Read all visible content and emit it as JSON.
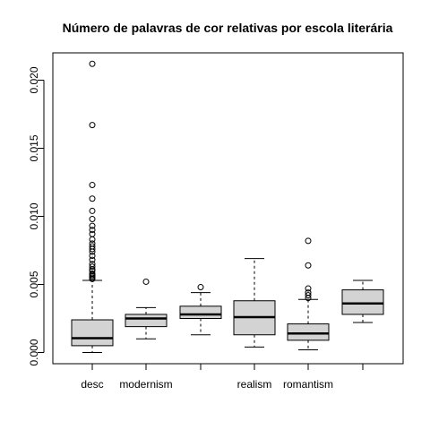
{
  "chart_data": {
    "type": "boxplot",
    "title": "Número de palavras de cor relativas por escola literária",
    "xlabel": "",
    "ylabel": "",
    "ylim": [
      0,
      0.0215
    ],
    "yticks": [
      0.0,
      0.005,
      0.01,
      0.015,
      0.02
    ],
    "ytick_labels": [
      "0.000",
      "0.005",
      "0.010",
      "0.015",
      "0.020"
    ],
    "categories": [
      "desc",
      "modernism",
      "",
      "realism",
      "romantism",
      ""
    ],
    "box_fill": "#d3d3d3",
    "grid": false,
    "legend": "none",
    "boxes": [
      {
        "category": "desc",
        "whisker_low": 0.0,
        "q1": 0.0005,
        "median": 0.00105,
        "q3": 0.0024,
        "whisker_high": 0.0053,
        "outliers": [
          0.0212,
          0.0167,
          0.0123,
          0.0113,
          0.0104,
          0.0098,
          0.0093,
          0.009,
          0.0087,
          0.0083,
          0.008,
          0.0078,
          0.0076,
          0.0074,
          0.0071,
          0.0068,
          0.0065,
          0.0063,
          0.0061,
          0.006,
          0.0058,
          0.0057,
          0.0056,
          0.0055,
          0.0054
        ]
      },
      {
        "category": "modernism",
        "whisker_low": 0.001,
        "q1": 0.0019,
        "median": 0.0025,
        "q3": 0.0028,
        "whisker_high": 0.0033,
        "outliers": [
          0.0052
        ]
      },
      {
        "category": "",
        "whisker_low": 0.0013,
        "q1": 0.0025,
        "median": 0.0028,
        "q3": 0.0034,
        "whisker_high": 0.0044,
        "outliers": [
          0.0048
        ]
      },
      {
        "category": "realism",
        "whisker_low": 0.0004,
        "q1": 0.0013,
        "median": 0.0026,
        "q3": 0.0038,
        "whisker_high": 0.0069,
        "outliers": []
      },
      {
        "category": "romantism",
        "whisker_low": 0.0002,
        "q1": 0.0009,
        "median": 0.0014,
        "q3": 0.0021,
        "whisker_high": 0.0039,
        "outliers": [
          0.0082,
          0.0064,
          0.0047,
          0.0044,
          0.0042,
          0.004
        ]
      },
      {
        "category": "",
        "whisker_low": 0.0022,
        "q1": 0.0028,
        "median": 0.0036,
        "q3": 0.0046,
        "whisker_high": 0.0053,
        "outliers": []
      }
    ]
  }
}
